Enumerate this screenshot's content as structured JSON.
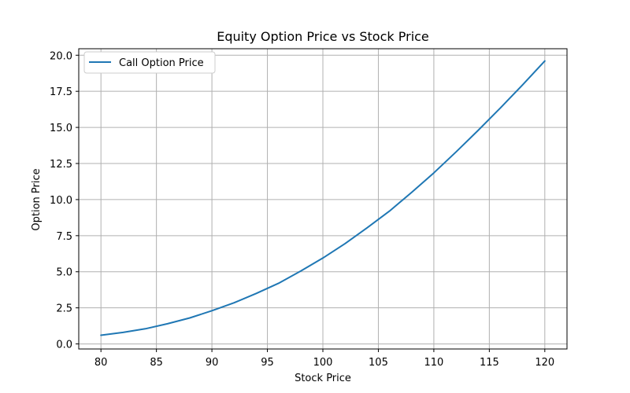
{
  "chart_data": {
    "type": "line",
    "title": "Equity Option Price vs Stock Price",
    "xlabel": "Stock Price",
    "ylabel": "Option Price",
    "xlim": [
      78.0,
      122.0
    ],
    "ylim": [
      -0.35,
      20.45
    ],
    "xticks": [
      80,
      85,
      90,
      95,
      100,
      105,
      110,
      115,
      120
    ],
    "yticks": [
      0.0,
      2.5,
      5.0,
      7.5,
      10.0,
      12.5,
      15.0,
      17.5,
      20.0
    ],
    "xtick_labels": [
      "80",
      "85",
      "90",
      "95",
      "100",
      "105",
      "110",
      "115",
      "120"
    ],
    "ytick_labels": [
      "0.0",
      "2.5",
      "5.0",
      "7.5",
      "10.0",
      "12.5",
      "15.0",
      "17.5",
      "20.0"
    ],
    "grid": true,
    "legend_position": "top-left",
    "series": [
      {
        "name": "Call Option Price",
        "color": "#1f77b4",
        "x": [
          80,
          82,
          84,
          86,
          88,
          90,
          92,
          94,
          96,
          98,
          100,
          102,
          104,
          106,
          108,
          110,
          112,
          114,
          116,
          118,
          120
        ],
        "y": [
          0.6,
          0.8,
          1.05,
          1.4,
          1.8,
          2.3,
          2.85,
          3.5,
          4.2,
          5.05,
          5.95,
          6.95,
          8.05,
          9.2,
          10.5,
          11.85,
          13.3,
          14.8,
          16.35,
          17.95,
          19.6
        ]
      }
    ]
  }
}
